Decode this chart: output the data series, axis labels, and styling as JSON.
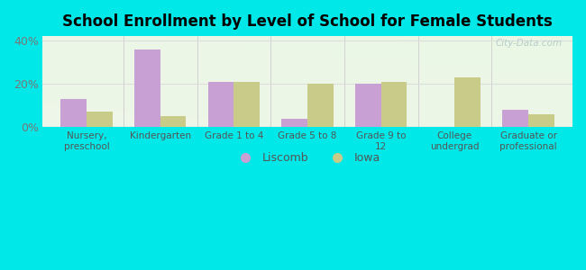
{
  "title": "School Enrollment by Level of School for Female Students",
  "categories": [
    "Nursery,\npreschool",
    "Kindergarten",
    "Grade 1 to 4",
    "Grade 5 to 8",
    "Grade 9 to\n12",
    "College\nundergrad",
    "Graduate or\nprofessional"
  ],
  "liscomb": [
    13,
    36,
    21,
    4,
    20,
    0,
    8
  ],
  "iowa": [
    7,
    5,
    21,
    20,
    21,
    23,
    6
  ],
  "liscomb_color": "#c8a0d4",
  "iowa_color": "#c8cc88",
  "ylim": [
    0,
    42
  ],
  "yticks": [
    0,
    20,
    40
  ],
  "ytick_labels": [
    "0%",
    "20%",
    "40%"
  ],
  "background_color": "#00e8e8",
  "watermark": "City-Data.com",
  "bar_width": 0.35,
  "legend_liscomb": "Liscomb",
  "legend_iowa": "Iowa"
}
